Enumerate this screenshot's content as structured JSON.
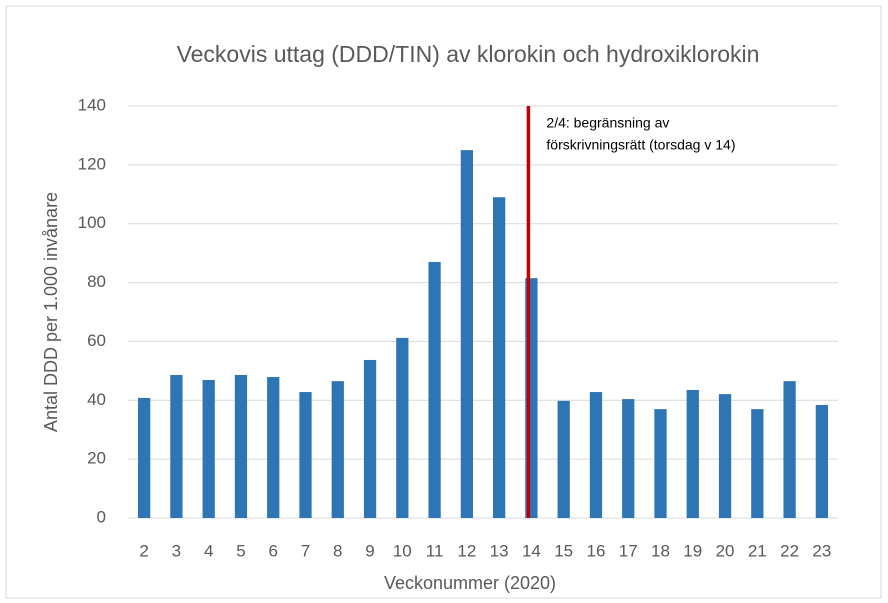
{
  "chart_data": {
    "type": "bar",
    "title": "Veckovis uttag (DDD/TIN) av klorokin och hydroxiklorokin",
    "x_label": "Veckonummer (2020)",
    "y_label": "Antal DDD per 1.000 invånare",
    "categories": [
      "2",
      "3",
      "4",
      "5",
      "6",
      "7",
      "8",
      "9",
      "10",
      "11",
      "12",
      "13",
      "14",
      "15",
      "16",
      "17",
      "18",
      "19",
      "20",
      "21",
      "22",
      "23"
    ],
    "values": [
      40.8,
      48.6,
      46.9,
      48.6,
      47.9,
      42.8,
      46.5,
      53.7,
      61.2,
      87,
      125,
      109,
      81.5,
      39.8,
      42.8,
      40.4,
      37,
      43.5,
      42.1,
      37,
      46.5,
      38.4
    ],
    "color": "#2e75b6",
    "ylim": [
      0,
      140
    ],
    "yticks": [
      0,
      20,
      40,
      60,
      80,
      100,
      120,
      140
    ],
    "grid": true,
    "annotation": {
      "x": "14",
      "color": "#c00000",
      "lines": [
        "2/4: begränsning av",
        "förskrivningsrätt (torsdag v 14)"
      ]
    }
  }
}
